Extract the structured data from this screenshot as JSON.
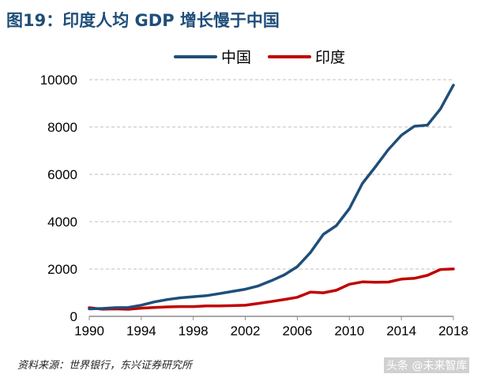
{
  "colors": {
    "title": "#1f4e79",
    "china": "#1f4e79",
    "india": "#c00000",
    "grid": "#bfbfbf",
    "axis": "#8c8c8c",
    "text": "#000000"
  },
  "header": {
    "title": "图19：印度人均 GDP 增长慢于中国"
  },
  "chart_data": {
    "type": "line",
    "title": "图19：印度人均 GDP 增长慢于中国",
    "xlabel": "",
    "ylabel": "",
    "x": [
      1990,
      1991,
      1992,
      1993,
      1994,
      1995,
      1996,
      1997,
      1998,
      1999,
      2000,
      2001,
      2002,
      2003,
      2004,
      2005,
      2006,
      2007,
      2008,
      2009,
      2010,
      2011,
      2012,
      2013,
      2014,
      2015,
      2016,
      2017,
      2018
    ],
    "series": [
      {
        "name": "中国",
        "color": "#1f4e79",
        "values": [
          318,
          333,
          366,
          377,
          473,
          610,
          709,
          782,
          829,
          873,
          959,
          1053,
          1148,
          1288,
          1508,
          1753,
          2099,
          2694,
          3468,
          3832,
          4550,
          5618,
          6317,
          7051,
          7651,
          8033,
          8079,
          8759,
          9771
        ]
      },
      {
        "name": "印度",
        "color": "#c00000",
        "values": [
          368,
          303,
          316,
          301,
          346,
          374,
          400,
          415,
          413,
          441,
          443,
          452,
          471,
          546,
          628,
          714,
          807,
          1028,
          998,
          1102,
          1358,
          1458,
          1444,
          1450,
          1574,
          1606,
          1732,
          1981,
          2002
        ]
      }
    ],
    "ylim": [
      0,
      10000
    ],
    "xlim": [
      1990,
      2018
    ],
    "yticks": [
      0,
      2000,
      4000,
      6000,
      8000,
      10000
    ],
    "ytick_labels": [
      "0",
      "2000",
      "4000",
      "6000",
      "8000",
      "10000"
    ],
    "xticks": [
      1990,
      1994,
      1998,
      2002,
      2006,
      2010,
      2014,
      2018
    ],
    "xtick_labels": [
      "1990",
      "1994",
      "1998",
      "2002",
      "2006",
      "2010",
      "2014",
      "2018"
    ],
    "legend_position": "top-center",
    "grid": "horizontal-dashed"
  },
  "footer": {
    "source": "资料来源：世界银行，东兴证券研究所",
    "watermark": "头条 @未来智库"
  }
}
